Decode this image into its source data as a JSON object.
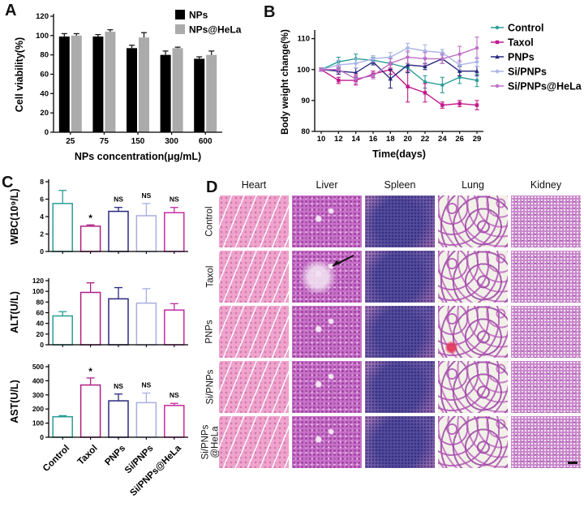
{
  "panel_labels": {
    "a": "A",
    "b": "B",
    "c": "C",
    "d": "D"
  },
  "chart_data": [
    {
      "id": "A",
      "type": "bar",
      "categories": [
        "25",
        "75",
        "150",
        "300",
        "600"
      ],
      "series": [
        {
          "name": "NPs",
          "color": "#000000",
          "values": [
            99,
            99,
            87,
            80,
            76
          ],
          "errors": [
            3,
            2,
            3,
            4,
            2
          ]
        },
        {
          "name": "NPs@HeLa",
          "color": "#ABABAB",
          "values": [
            100,
            104,
            98,
            87,
            80
          ],
          "errors": [
            2,
            2,
            5,
            1,
            4
          ]
        }
      ],
      "xlabel": "NPs concentration(μg/mL)",
      "ylabel": "Cell viability(%)",
      "ylim": [
        0,
        120
      ],
      "yticks": [
        0,
        20,
        40,
        60,
        80,
        100,
        120
      ],
      "legend_position": "top-right"
    },
    {
      "id": "B",
      "type": "line",
      "x": [
        "10",
        "12",
        "14",
        "16",
        "18",
        "20",
        "22",
        "24",
        "26",
        "29"
      ],
      "series": [
        {
          "name": "Control",
          "color": "#2A9D96",
          "marker": "circle",
          "values": [
            100,
            102.5,
            103.5,
            103,
            102,
            100.5,
            96,
            95,
            97.5,
            96.5
          ],
          "errors": [
            0.5,
            1.5,
            1.5,
            1,
            1.5,
            1.5,
            2,
            2.5,
            2,
            2
          ]
        },
        {
          "name": "Taxol",
          "color": "#C2188C",
          "marker": "square",
          "values": [
            100,
            96.5,
            96.5,
            98.5,
            100,
            94.5,
            92.5,
            88.5,
            89,
            88.5
          ],
          "errors": [
            0.5,
            1,
            1.5,
            1,
            1.5,
            5,
            3,
            1,
            1,
            1.5
          ]
        },
        {
          "name": "PNPs",
          "color": "#28287E",
          "marker": "triangle",
          "values": [
            100,
            99.5,
            99,
            102.5,
            97,
            101.5,
            101,
            103.5,
            99.5,
            99.5
          ],
          "errors": [
            0.5,
            1,
            1.5,
            1,
            3,
            2.5,
            1,
            1.5,
            1.5,
            1.5
          ]
        },
        {
          "name": "Si/PNPs",
          "color": "#A9B4E6",
          "marker": "diamond",
          "values": [
            100,
            101.5,
            102,
            103.5,
            104,
            107,
            106,
            105.5,
            101.5,
            102.5
          ],
          "errors": [
            0.5,
            1.5,
            1.5,
            1,
            1.5,
            1.5,
            2,
            1,
            1.5,
            1.5
          ]
        },
        {
          "name": "Si/PNPs@HeLa",
          "color": "#BD6FC4",
          "marker": "circle",
          "values": [
            100,
            100,
            97,
            98,
            102,
            104,
            103.5,
            103.5,
            105,
            107
          ],
          "errors": [
            0.5,
            1,
            1.5,
            1,
            1.5,
            2,
            2,
            1.5,
            2.5,
            3.5
          ]
        }
      ],
      "xlabel": "Time(days)",
      "ylabel": "Body weight change(%)",
      "ylim": [
        80,
        112
      ],
      "yticks": [
        80,
        90,
        100,
        110
      ],
      "legend_position": "right"
    },
    {
      "id": "C-WBC",
      "type": "bar",
      "categories": [
        "Control",
        "Taxol",
        "PNPs",
        "Si/PNPs",
        "Si/PNPs@HeLa"
      ],
      "values": [
        5.5,
        2.9,
        4.6,
        4.1,
        4.45
      ],
      "errors": [
        1.5,
        0.15,
        0.45,
        1.4,
        0.6
      ],
      "sig": [
        "",
        "*",
        "NS",
        "NS",
        "NS"
      ],
      "bar_colors": [
        "#2A9D96",
        "#B01F84",
        "#28287E",
        "#A9AEE0",
        "#C52AA0"
      ],
      "ylabel": "WBC(10⁹/L)",
      "ylim": [
        0,
        8
      ],
      "yticks": [
        0,
        2,
        4,
        6,
        8
      ]
    },
    {
      "id": "C-ALT",
      "type": "bar",
      "categories": [
        "Control",
        "Taxol",
        "PNPs",
        "Si/PNPs",
        "Si/PNPs@HeLa"
      ],
      "values": [
        54,
        98,
        86,
        78,
        65
      ],
      "errors": [
        8,
        18,
        21,
        27,
        12
      ],
      "sig": [
        "",
        "",
        "",
        "",
        ""
      ],
      "bar_colors": [
        "#2A9D96",
        "#B01F84",
        "#28287E",
        "#A9AEE0",
        "#C52AA0"
      ],
      "ylabel": "ALT(U/L)",
      "ylim": [
        0,
        120
      ],
      "yticks": [
        0,
        20,
        40,
        60,
        80,
        100,
        120
      ]
    },
    {
      "id": "C-AST",
      "type": "bar",
      "categories": [
        "Control",
        "Taxol",
        "PNPs",
        "Si/PNPs",
        "Si/PNPs@HeLa"
      ],
      "values": [
        145,
        370,
        258,
        245,
        225
      ],
      "errors": [
        8,
        50,
        48,
        68,
        15
      ],
      "sig": [
        "",
        "*",
        "NS",
        "NS",
        "NS"
      ],
      "bar_colors": [
        "#2A9D96",
        "#B01F84",
        "#28287E",
        "#A9AEE0",
        "#C52AA0"
      ],
      "ylabel": "AST(U/L)",
      "ylim": [
        0,
        500
      ],
      "yticks": [
        0,
        100,
        200,
        300,
        400,
        500
      ]
    }
  ],
  "histology": {
    "columns": [
      "Heart",
      "Liver",
      "Spleen",
      "Lung",
      "Kidney"
    ],
    "rows": [
      "Control",
      "Taxol",
      "PNPs",
      "Si/PNPs",
      "Si/PNPs@HeLa"
    ],
    "row_labels_display": [
      "Control",
      "Taxol",
      "PNPs",
      "Si/PNPs",
      "Si/PNPs\n@HeLa"
    ],
    "annotations": {
      "taxol_liver": "black arrow pointing to pale lesion",
      "pnps_lung": "red spot",
      "si_pnps_hela_kidney": "scale bar"
    }
  }
}
